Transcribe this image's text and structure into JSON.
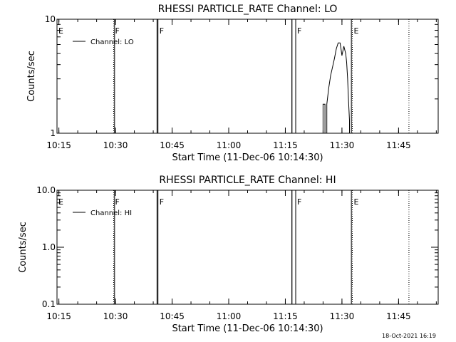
{
  "footer": {
    "timestamp": "18-Oct-2021 16:19"
  },
  "chart_data": [
    {
      "type": "line",
      "title": "RHESSI PARTICLE_RATE Channel: LO",
      "xlabel": "Start Time (11-Dec-06 10:14:30)",
      "ylabel": "Counts/sec",
      "y_scale": "log",
      "xlim": [
        "10:14:30",
        "11:55:30"
      ],
      "ylim": [
        1,
        10
      ],
      "x_ticks": [
        "10:15",
        "10:30",
        "10:45",
        "11:00",
        "11:15",
        "11:30",
        "11:45"
      ],
      "y_ticks": [
        "1",
        "10"
      ],
      "legend": {
        "position": "top-left",
        "label": "Channel: LO"
      },
      "flag_markers": [
        {
          "x": "10:14:30",
          "label": "E",
          "style": "none"
        },
        {
          "x": "10:29:30",
          "label": "F",
          "style": "dotted"
        },
        {
          "x": "10:29:45",
          "label": "",
          "style": "solid"
        },
        {
          "x": "10:41:00",
          "label": "",
          "style": "solid"
        },
        {
          "x": "10:41:15",
          "label": "F",
          "style": "solid"
        },
        {
          "x": "11:16:45",
          "label": "",
          "style": "solid"
        },
        {
          "x": "11:17:45",
          "label": "F",
          "style": "solid"
        },
        {
          "x": "11:32:30",
          "label": "",
          "style": "solid"
        },
        {
          "x": "11:32:45",
          "label": "E",
          "style": "dotted"
        },
        {
          "x": "11:47:45",
          "label": "",
          "style": "dotted"
        }
      ],
      "series": [
        {
          "name": "Channel: LO",
          "x": [
            "11:16:45",
            "11:16:45",
            "11:17:45",
            "11:17:45",
            "11:25:00",
            "11:25:00",
            "11:25:30",
            "11:25:30",
            "11:26:00",
            "11:26:00",
            "11:26:30",
            "11:27:00",
            "11:27:30",
            "11:28:00",
            "11:28:30",
            "11:29:00",
            "11:29:15",
            "11:29:30",
            "11:29:45",
            "11:30:00",
            "11:30:30",
            "11:31:00",
            "11:31:15",
            "11:31:30",
            "11:31:45",
            "11:32:00",
            "11:32:00"
          ],
          "y": [
            1,
            10,
            10,
            1,
            1,
            1.8,
            1.8,
            1,
            1,
            1.8,
            2.5,
            3.2,
            3.8,
            4.5,
            5.5,
            6.2,
            6.2,
            6.2,
            5.5,
            4.8,
            5.8,
            5.0,
            4.2,
            3.0,
            1.9,
            1.3,
            1
          ]
        }
      ]
    },
    {
      "type": "line",
      "title": "RHESSI PARTICLE_RATE Channel: HI",
      "xlabel": "Start Time (11-Dec-06 10:14:30)",
      "ylabel": "Counts/sec",
      "y_scale": "log",
      "xlim": [
        "10:14:30",
        "11:55:30"
      ],
      "ylim": [
        0.1,
        10
      ],
      "x_ticks": [
        "10:15",
        "10:30",
        "10:45",
        "11:00",
        "11:15",
        "11:30",
        "11:45"
      ],
      "y_ticks": [
        "0.1",
        "1.0",
        "10.0"
      ],
      "legend": {
        "position": "top-left",
        "label": "Channel: HI"
      },
      "flag_markers": [
        {
          "x": "10:14:30",
          "label": "E",
          "style": "none"
        },
        {
          "x": "10:29:30",
          "label": "F",
          "style": "dotted"
        },
        {
          "x": "10:29:45",
          "label": "",
          "style": "solid"
        },
        {
          "x": "10:41:00",
          "label": "",
          "style": "solid"
        },
        {
          "x": "10:41:15",
          "label": "F",
          "style": "solid"
        },
        {
          "x": "11:16:45",
          "label": "",
          "style": "solid"
        },
        {
          "x": "11:17:45",
          "label": "F",
          "style": "solid"
        },
        {
          "x": "11:32:30",
          "label": "",
          "style": "solid"
        },
        {
          "x": "11:32:45",
          "label": "E",
          "style": "dotted"
        },
        {
          "x": "11:47:45",
          "label": "",
          "style": "dotted"
        }
      ],
      "series": [
        {
          "name": "Channel: HI",
          "x": [
            "11:16:45",
            "11:16:45",
            "11:17:45",
            "11:17:45"
          ],
          "y": [
            0.1,
            10,
            10,
            0.1
          ]
        }
      ]
    }
  ]
}
